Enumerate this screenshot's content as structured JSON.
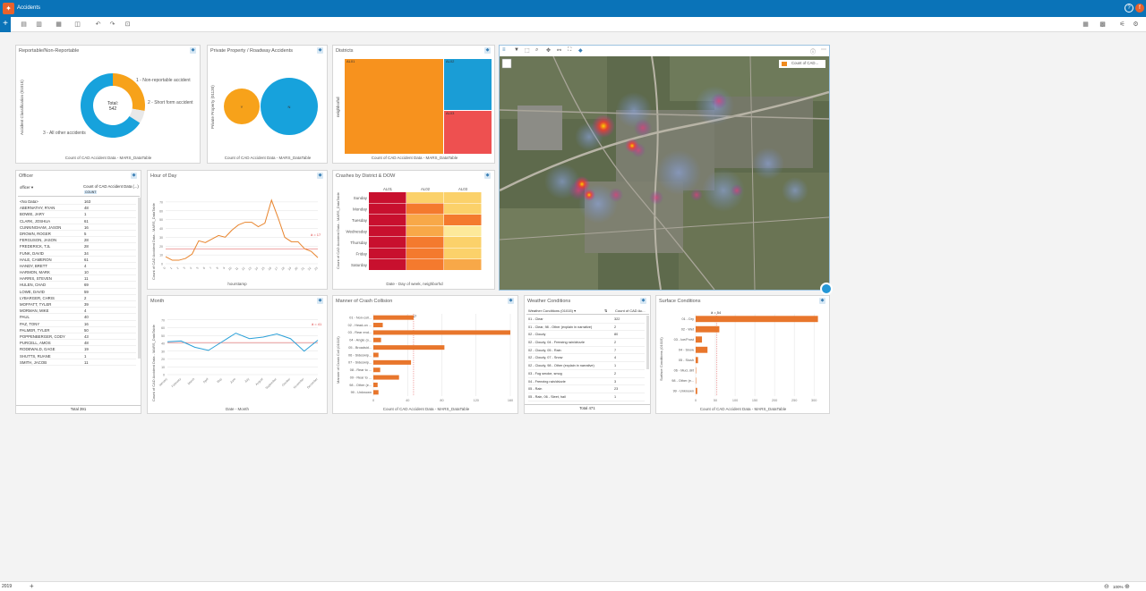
{
  "app": {
    "title": "Accidents",
    "logo": "insights-logo-icon"
  },
  "toolbar": {
    "add": "+"
  },
  "cards": {
    "reportable": {
      "title": "Reportable/Non-Reportable",
      "ylabel": "Accident Classification (01015)",
      "center_label": "Total:",
      "center_value": "542",
      "labels": [
        "1 - Non-reportable accident",
        "2 - Short form accident",
        "3 - All other accidents"
      ],
      "footer": "Count of CAD Accident Data - MARS_DataTable"
    },
    "private": {
      "title": "Private Property / Roadway Accidents",
      "ylabel": "Private Property (01130)",
      "bubbles": [
        "Y",
        "N"
      ],
      "footer": "Count of CAD Accident Data - MARS_DataTable"
    },
    "districts": {
      "title": "Districts",
      "ylabel": "neighborhd",
      "tiles": [
        "AL01",
        "AL02",
        "AL03"
      ],
      "footer": "Count of CAD Accident Data - MARS_DataTable"
    },
    "officer": {
      "title": "Officer",
      "col1": "officer",
      "col2": "Count of CAD Accident Data (...)",
      "col2_sub": "COUNT",
      "rows": [
        [
          "<No Data>",
          "163"
        ],
        [
          "ABERNATHY, RYAN",
          "48"
        ],
        [
          "BOWIE, JARY",
          "1"
        ],
        [
          "CLARK, JOSHUA",
          "61"
        ],
        [
          "CUNNINGHAM, JASON",
          "16"
        ],
        [
          "DROWN, ROGER",
          "5"
        ],
        [
          "FERGUSON, JASON",
          "28"
        ],
        [
          "FREDERICK, TJL",
          "28"
        ],
        [
          "FUNK, DAVID",
          "34"
        ],
        [
          "HALE, CAMERON",
          "61"
        ],
        [
          "HANDY, BRETT",
          "4"
        ],
        [
          "HARMON, MARK",
          "10"
        ],
        [
          "HARRIS, STEVEN",
          "11"
        ],
        [
          "HULEN, CHAD",
          "69"
        ],
        [
          "LOWE, DAVID",
          "59"
        ],
        [
          "LYBARGER, CHRIS",
          "2"
        ],
        [
          "MOFFATT, TYLER",
          "39"
        ],
        [
          "MORMAN, MIKE",
          "4"
        ],
        [
          "PAUL",
          "40"
        ],
        [
          "PAZ, TONY",
          "16"
        ],
        [
          "PALMER, TYLER",
          "50"
        ],
        [
          "POPPENBERGER, CODY",
          "43"
        ],
        [
          "PURCELL, AMOS",
          "48"
        ],
        [
          "RODEWALD, GAGE",
          "19"
        ],
        [
          "SHUTTS, RUANE",
          "1"
        ],
        [
          "SMITH, JACOB",
          "11"
        ]
      ],
      "total": "Total 391"
    },
    "hour": {
      "title": "Hour of Day",
      "ylabel": "Count of CAD Accident Data - MARS_DataTable",
      "xlabel": "hourstamp",
      "avg": "ā = 17"
    },
    "crashes": {
      "title": "Crashes by District & DOW",
      "ylabel": "Count of CAD Accident Data - MARS_DataTable",
      "cols": [
        "AL01",
        "AL02",
        "AL03"
      ],
      "rows": [
        "Sunday",
        "Monday",
        "Tuesday",
        "Wednesday",
        "Thursday",
        "Friday",
        "Saturday"
      ],
      "footer": "Date - Day of week, neighborhd"
    },
    "map": {
      "legend": "Count of CAD..."
    },
    "month": {
      "title": "Month",
      "ylabel": "Count of CAD Accident Data - MARS_DataTable",
      "xlabel": "Date - Month",
      "months": [
        "January",
        "February",
        "March",
        "April",
        "May",
        "June",
        "July",
        "August",
        "September",
        "October",
        "November",
        "December"
      ],
      "avg": "ā = 41"
    },
    "manner": {
      "title": "Manner of Crash Collision",
      "ylabel": "Manner of Crash Coll (01015)",
      "categories": [
        "01 - Non-coll...",
        "02 - Head-on ...",
        "03 - Rear end...",
        "04 - Angle (o...",
        "05 - Broadsid...",
        "06 - Sideswip...",
        "07 - Sideswip...",
        "08 - Rear to ...",
        "09 - Rear to ...",
        "98 - Other (e...",
        "99 - Unknown"
      ],
      "ticks": [
        "0",
        "40",
        "80",
        "120",
        "160"
      ],
      "avg": "ā = 47",
      "footer": "Count of CAD Accident Data - MARS_DataTable"
    },
    "weather": {
      "title": "Weather Conditions",
      "col1": "Weather Conditions (01015)",
      "col2": "Count of CAD Ac...",
      "rows": [
        [
          "01 - Clear",
          "322"
        ],
        [
          "01 - Clear, 98 - Other (explain in narrative)",
          "2"
        ],
        [
          "02 - Cloudy",
          "80"
        ],
        [
          "02 - Cloudy, 04 - Freezing rain/drizzle",
          "2"
        ],
        [
          "02 - Cloudy, 05 - Rain",
          "7"
        ],
        [
          "02 - Cloudy, 07 - Snow",
          "4"
        ],
        [
          "02 - Cloudy, 98 - Other (explain in narrative)",
          "1"
        ],
        [
          "03 - Fog smoke, smog",
          "2"
        ],
        [
          "04 - Freezing rain/drizzle",
          "3"
        ],
        [
          "05 - Rain",
          "23"
        ],
        [
          "05 - Rain, 06 - Sleet, hail",
          "1"
        ]
      ],
      "total": "Total 471"
    },
    "surface": {
      "title": "Surface Conditions",
      "ylabel": "Surface Conditions (01015)",
      "categories": [
        "01 - Dry",
        "02 - Wet",
        "03 - Ice/Frost",
        "04 - Snow",
        "05 - Slush",
        "06 - Mud, dirt",
        "98 - Other (e...",
        "99 - Unknown"
      ],
      "ticks": [
        "0",
        "50",
        "100",
        "150",
        "200",
        "250",
        "300"
      ],
      "avg": "ā = 54",
      "footer": "Count of CAD Accident Data - MARS_DataTable"
    }
  },
  "bottom": {
    "year": "2019",
    "zoom": "100%"
  },
  "chart_data": [
    {
      "type": "pie",
      "categories": [
        "1 - Non-reportable accident",
        "2 - Short form accident",
        "3 - All other accidents"
      ],
      "values": [
        150,
        35,
        357
      ],
      "title": "Reportable/Non-Reportable"
    },
    {
      "type": "scatter",
      "categories": [
        "Y",
        "N"
      ],
      "values": [
        120,
        422
      ],
      "title": "Private Property / Roadway Accidents"
    },
    {
      "type": "bar",
      "categories": [
        "AL01",
        "AL02",
        "AL03"
      ],
      "values": [
        300,
        145,
        97
      ],
      "title": "Districts"
    },
    {
      "type": "line",
      "title": "Hour of Day",
      "x": [
        0,
        1,
        2,
        3,
        4,
        5,
        6,
        7,
        8,
        9,
        10,
        11,
        12,
        13,
        14,
        15,
        16,
        17,
        18,
        19,
        20,
        21,
        22,
        23
      ],
      "values": [
        8,
        4,
        4,
        6,
        11,
        26,
        24,
        28,
        32,
        30,
        38,
        44,
        47,
        47,
        42,
        46,
        72,
        52,
        30,
        25,
        25,
        17,
        14,
        7
      ],
      "ylim": [
        0,
        80
      ],
      "ylabel": "Count of CAD Accident Data - MARS_DataTable",
      "xlabel": "hourstamp"
    },
    {
      "type": "line",
      "title": "Month",
      "categories": [
        "January",
        "February",
        "March",
        "April",
        "May",
        "June",
        "July",
        "August",
        "September",
        "October",
        "November",
        "December"
      ],
      "values": [
        42,
        43,
        35,
        31,
        42,
        53,
        46,
        48,
        52,
        46,
        30,
        44
      ],
      "ylim": [
        0,
        80
      ],
      "xlabel": "Date - Month"
    },
    {
      "type": "bar",
      "title": "Manner of Crash Collision",
      "categories": [
        "01 - Non-coll...",
        "02 - Head-on ...",
        "03 - Rear end...",
        "04 - Angle (o...",
        "05 - Broadsid...",
        "06 - Sideswip...",
        "07 - Sideswip...",
        "08 - Rear to ...",
        "09 - Rear to ...",
        "98 - Other (e...",
        "99 - Unknown"
      ],
      "values": [
        47,
        11,
        160,
        9,
        83,
        6,
        44,
        8,
        30,
        5,
        6
      ],
      "xlim": [
        0,
        160
      ]
    },
    {
      "type": "bar",
      "title": "Surface Conditions",
      "categories": [
        "01 - Dry",
        "02 - Wet",
        "03 - Ice/Frost",
        "04 - Snow",
        "05 - Slush",
        "06 - Mud, dirt",
        "98 - Other (e...",
        "99 - Unknown"
      ],
      "values": [
        310,
        60,
        16,
        30,
        6,
        1,
        1,
        4
      ],
      "xlim": [
        0,
        320
      ]
    },
    {
      "type": "heatmap",
      "title": "Crashes by District & DOW",
      "columns": [
        "AL01",
        "AL02",
        "AL03"
      ],
      "rows": [
        "Sunday",
        "Monday",
        "Tuesday",
        "Wednesday",
        "Thursday",
        "Friday",
        "Saturday"
      ],
      "values": [
        [
          40,
          14,
          12
        ],
        [
          42,
          20,
          13
        ],
        [
          38,
          17,
          24
        ],
        [
          40,
          15,
          10
        ],
        [
          38,
          22,
          12
        ],
        [
          39,
          22,
          14
        ],
        [
          46,
          21,
          18
        ]
      ]
    }
  ]
}
